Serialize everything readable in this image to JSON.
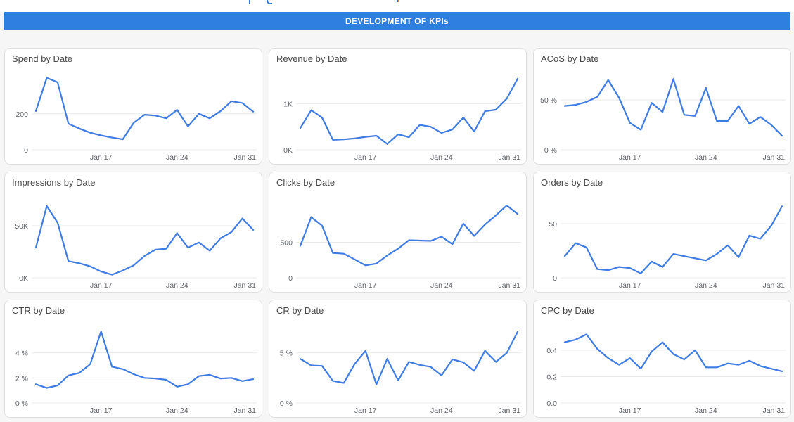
{
  "header": {
    "title": "DEVELOPMENT OF KPIs",
    "bg_color": "#2F7FE0",
    "text_color": "#FFFFFF"
  },
  "chart_data": {
    "type": "line",
    "categories": [
      "Jan 11",
      "Jan 12",
      "Jan 13",
      "Jan 14",
      "Jan 15",
      "Jan 16",
      "Jan 17",
      "Jan 18",
      "Jan 19",
      "Jan 20",
      "Jan 21",
      "Jan 22",
      "Jan 23",
      "Jan 24",
      "Jan 25",
      "Jan 26",
      "Jan 27",
      "Jan 28",
      "Jan 29",
      "Jan 30",
      "Jan 31"
    ],
    "x_tick_labels": [
      "Jan 17",
      "Jan 24",
      "Jan 31"
    ],
    "x_tick_indices": [
      6,
      13,
      20
    ],
    "line_color": "#3E7CE4",
    "grid_color": "#E9E9E9",
    "axis_label_color": "#5F6368",
    "legend": "none",
    "grid": true,
    "charts": [
      {
        "id": "spend",
        "title": "Spend by Date",
        "ylim": [
          0,
          410
        ],
        "yticks": [
          {
            "value": 0,
            "label": "0"
          },
          {
            "value": 200,
            "label": "200"
          }
        ],
        "values": [
          215,
          400,
          375,
          145,
          118,
          95,
          80,
          68,
          58,
          150,
          195,
          190,
          175,
          222,
          130,
          200,
          175,
          215,
          270,
          260,
          212
        ]
      },
      {
        "id": "revenue",
        "title": "Revenue by Date",
        "ylim": [
          0,
          1600
        ],
        "yticks": [
          {
            "value": 0,
            "label": "0K"
          },
          {
            "value": 1000,
            "label": "1K"
          }
        ],
        "values": [
          470,
          860,
          700,
          215,
          225,
          245,
          280,
          305,
          125,
          335,
          275,
          540,
          500,
          365,
          440,
          700,
          395,
          835,
          870,
          1110,
          1540
        ]
      },
      {
        "id": "acos",
        "title": "ACoS by Date",
        "ylim": [
          0,
          74
        ],
        "yticks": [
          {
            "value": 0,
            "label": "0 %"
          },
          {
            "value": 50,
            "label": "50 %"
          }
        ],
        "values": [
          44,
          45,
          48,
          53,
          70,
          52,
          27,
          20,
          47,
          38,
          71,
          35,
          34,
          62,
          29,
          29,
          44,
          26,
          33,
          25,
          14
        ]
      },
      {
        "id": "impressions",
        "title": "Impressions by Date",
        "ylim": [
          0,
          75000
        ],
        "yticks": [
          {
            "value": 0,
            "label": "0K"
          },
          {
            "value": 50000,
            "label": "50K"
          }
        ],
        "values": [
          29000,
          69000,
          53000,
          16000,
          14000,
          11000,
          6000,
          3000,
          7000,
          12000,
          21000,
          27000,
          28000,
          43000,
          29000,
          34000,
          26000,
          38000,
          44000,
          57000,
          46000
        ]
      },
      {
        "id": "clicks",
        "title": "Clicks by Date",
        "ylim": [
          0,
          1100
        ],
        "yticks": [
          {
            "value": 0,
            "label": "0"
          },
          {
            "value": 500,
            "label": "500"
          }
        ],
        "values": [
          450,
          855,
          735,
          350,
          340,
          260,
          175,
          200,
          315,
          410,
          530,
          525,
          520,
          580,
          475,
          765,
          590,
          750,
          880,
          1020,
          900
        ]
      },
      {
        "id": "orders",
        "title": "Orders by Date",
        "ylim": [
          0,
          72
        ],
        "yticks": [
          {
            "value": 0,
            "label": "0"
          },
          {
            "value": 50,
            "label": "50"
          }
        ],
        "values": [
          20,
          32,
          28,
          8,
          7,
          10,
          9,
          4,
          15,
          10,
          22,
          20,
          18,
          16,
          22,
          30,
          19,
          39,
          36,
          48,
          66
        ]
      },
      {
        "id": "ctr",
        "title": "CTR by Date",
        "ylim": [
          0,
          6.0
        ],
        "yticks": [
          {
            "value": 0,
            "label": "0 %"
          },
          {
            "value": 2,
            "label": "2 %"
          },
          {
            "value": 4,
            "label": "4 %"
          }
        ],
        "values": [
          1.5,
          1.2,
          1.4,
          2.2,
          2.4,
          3.1,
          5.7,
          2.9,
          2.7,
          2.3,
          2.0,
          1.95,
          1.85,
          1.3,
          1.5,
          2.15,
          2.25,
          1.95,
          2.0,
          1.75,
          1.9
        ]
      },
      {
        "id": "cr",
        "title": "CR by Date",
        "ylim": [
          0,
          7.5
        ],
        "yticks": [
          {
            "value": 0,
            "label": "0 %"
          },
          {
            "value": 5,
            "label": "5 %"
          }
        ],
        "values": [
          4.4,
          3.75,
          3.7,
          2.2,
          2.0,
          3.9,
          5.2,
          1.85,
          4.4,
          2.25,
          4.1,
          3.8,
          3.6,
          2.75,
          4.35,
          4.05,
          3.2,
          5.2,
          4.1,
          5.0,
          7.1
        ]
      },
      {
        "id": "cpc",
        "title": "CPC by Date",
        "ylim": [
          0,
          0.57
        ],
        "yticks": [
          {
            "value": 0,
            "label": "0.0"
          },
          {
            "value": 0.2,
            "label": "0.2"
          },
          {
            "value": 0.4,
            "label": "0.4"
          }
        ],
        "values": [
          0.46,
          0.48,
          0.52,
          0.41,
          0.34,
          0.29,
          0.34,
          0.26,
          0.39,
          0.46,
          0.37,
          0.33,
          0.4,
          0.27,
          0.27,
          0.3,
          0.29,
          0.32,
          0.28,
          0.26,
          0.24
        ]
      }
    ]
  }
}
